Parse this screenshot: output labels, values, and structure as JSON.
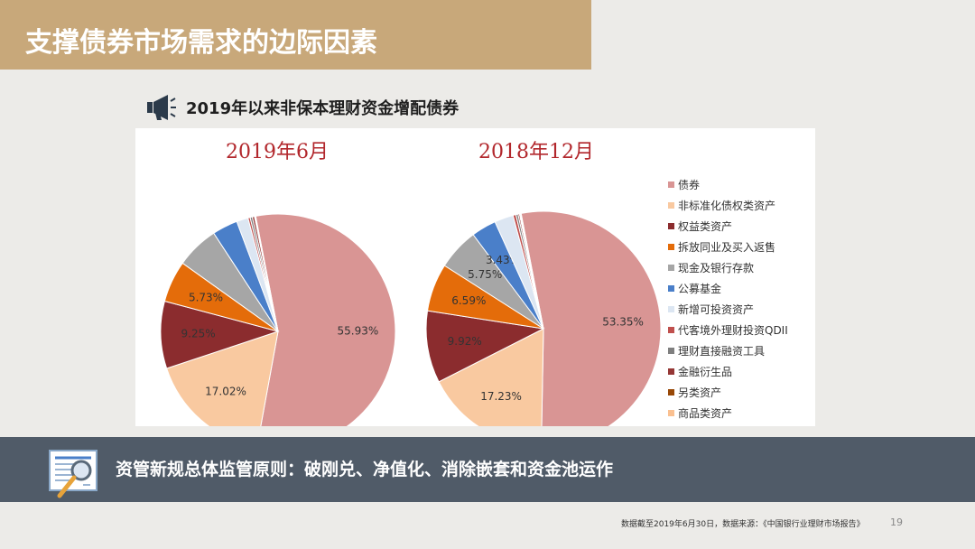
{
  "slide": {
    "title": "支撑债券市场需求的边际因素",
    "subtitle": "2019年以来非保本理财资金增配债券",
    "banner": "资管新规总体监管原则：破刚兑、净值化、消除嵌套和资金池运作",
    "footnote": "数据截至2019年6月30日，数据来源：《中国银行业理财市场报告》",
    "page_number": "19"
  },
  "icons": {
    "subtitle": "megaphone-icon",
    "banner": "document-magnifier-icon"
  },
  "chart_data": {
    "type": "pie",
    "legend_position": "right",
    "legend": [
      {
        "name": "债券",
        "color": "#d99594"
      },
      {
        "name": "非标准化债权类资产",
        "color": "#f9c9a0"
      },
      {
        "name": "权益类资产",
        "color": "#8b2c2e"
      },
      {
        "name": "拆放同业及买入返售",
        "color": "#e46c0a"
      },
      {
        "name": "现金及银行存款",
        "color": "#a6a6a6"
      },
      {
        "name": "公募基金",
        "color": "#4a7fc9"
      },
      {
        "name": "新增可投资资产",
        "color": "#dce6f2"
      },
      {
        "name": "代客境外理财投资QDII",
        "color": "#c0504d"
      },
      {
        "name": "理财直接融资工具",
        "color": "#7f7f7f"
      },
      {
        "name": "金融衍生品",
        "color": "#953735"
      },
      {
        "name": "另类资产",
        "color": "#984807"
      },
      {
        "name": "商品类资产",
        "color": "#fac090"
      }
    ],
    "charts": [
      {
        "title": "2019年6月",
        "slices": [
          {
            "name": "债券",
            "value": 55.93,
            "label": "55.93%"
          },
          {
            "name": "非标准化债权类资产",
            "value": 17.02,
            "label": "17.02%"
          },
          {
            "name": "权益类资产",
            "value": 9.25,
            "label": "9.25%"
          },
          {
            "name": "拆放同业及买入返售",
            "value": 5.73,
            "label": "5.73%"
          },
          {
            "name": "现金及银行存款",
            "value": 5.9,
            "label": ""
          },
          {
            "name": "公募基金",
            "value": 3.5,
            "label": ""
          },
          {
            "name": "新增可投资资产",
            "value": 1.6,
            "label": ""
          },
          {
            "name": "代客境外理财投资QDII",
            "value": 0.3,
            "label": ""
          },
          {
            "name": "理财直接融资工具",
            "value": 0.3,
            "label": ""
          },
          {
            "name": "金融衍生品",
            "value": 0.3,
            "label": ""
          },
          {
            "name": "另类资产",
            "value": 0.1,
            "label": ""
          },
          {
            "name": "商品类资产",
            "value": 0.07,
            "label": ""
          }
        ]
      },
      {
        "title": "2018年12月",
        "slices": [
          {
            "name": "债券",
            "value": 53.35,
            "label": "53.35%"
          },
          {
            "name": "非标准化债权类资产",
            "value": 17.23,
            "label": "17.23%"
          },
          {
            "name": "权益类资产",
            "value": 9.92,
            "label": "9.92%"
          },
          {
            "name": "拆放同业及买入返售",
            "value": 6.59,
            "label": "6.59%"
          },
          {
            "name": "现金及银行存款",
            "value": 5.75,
            "label": "5.75%"
          },
          {
            "name": "公募基金",
            "value": 3.43,
            "label": "3.43%"
          },
          {
            "name": "新增可投资资产",
            "value": 2.6,
            "label": ""
          },
          {
            "name": "代客境外理财投资QDII",
            "value": 0.4,
            "label": ""
          },
          {
            "name": "理财直接融资工具",
            "value": 0.3,
            "label": ""
          },
          {
            "name": "金融衍生品",
            "value": 0.2,
            "label": ""
          },
          {
            "name": "另类资产",
            "value": 0.13,
            "label": ""
          },
          {
            "name": "商品类资产",
            "value": 0.1,
            "label": ""
          }
        ]
      }
    ]
  }
}
